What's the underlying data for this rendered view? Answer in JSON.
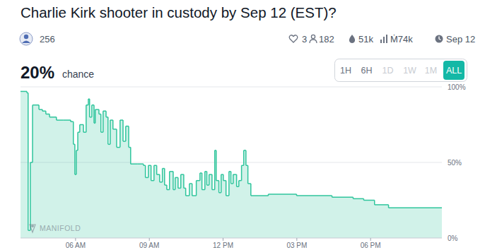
{
  "header": {
    "creator_stat": "256",
    "stats": [
      "3",
      "182",
      "51k",
      "Ṁ74k",
      "Sep 12"
    ],
    "probability": "20%",
    "probability_caption": "chance",
    "time_ranges": [
      "1H",
      "6H",
      "1D",
      "1W",
      "1M",
      "ALL"
    ],
    "selected_range": "ALL",
    "disabled_ranges": [
      "1D",
      "1W",
      "1M"
    ]
  },
  "watermark": "MANIFOLD",
  "chart_data": {
    "type": "area",
    "title": "Charlie Kirk shooter in custody by Sep 12 (EST)?",
    "x": [
      3.76,
      4.02,
      4.07,
      4.16,
      4.25,
      4.51,
      4.65,
      4.79,
      4.94,
      5.22,
      5.51,
      5.8,
      5.91,
      5.97,
      6.03,
      6.09,
      6.17,
      6.32,
      6.43,
      6.52,
      6.57,
      6.66,
      6.75,
      6.8,
      6.95,
      7.03,
      7.12,
      7.24,
      7.32,
      7.41,
      7.52,
      7.67,
      7.81,
      7.93,
      8.04,
      8.16,
      8.24,
      8.53,
      8.76,
      8.84,
      8.96,
      9.07,
      9.19,
      9.3,
      9.42,
      9.53,
      9.62,
      9.71,
      9.82,
      9.97,
      10.05,
      10.17,
      10.28,
      10.4,
      10.48,
      10.63,
      10.74,
      10.91,
      11.06,
      11.14,
      11.26,
      11.34,
      11.43,
      11.55,
      11.66,
      11.72,
      11.83,
      11.92,
      12.01,
      12.12,
      12.24,
      12.32,
      12.41,
      12.55,
      12.64,
      12.75,
      12.84,
      12.93,
      13.01,
      13.13,
      13.84,
      14.99,
      16.43,
      17.29,
      17.72,
      18.16,
      18.73
    ],
    "values": [
      97,
      96,
      5,
      50,
      88,
      85,
      84,
      82,
      80,
      78,
      78,
      77,
      62,
      42,
      58,
      70,
      75,
      70,
      88,
      92,
      80,
      88,
      76,
      85,
      82,
      70,
      84,
      80,
      62,
      78,
      72,
      60,
      78,
      64,
      74,
      60,
      49,
      49,
      48,
      40,
      48,
      38,
      48,
      42,
      37,
      46,
      35,
      32,
      44,
      32,
      40,
      33,
      42,
      33,
      28,
      36,
      28,
      38,
      43,
      32,
      44,
      35,
      42,
      32,
      58,
      38,
      30,
      42,
      38,
      28,
      44,
      36,
      42,
      34,
      38,
      48,
      58,
      48,
      36,
      28,
      29,
      28,
      27,
      26,
      25,
      22,
      20
    ],
    "color": "#2fc59c",
    "line_style": "step",
    "xlim": [
      3.76,
      20.9
    ],
    "xticks": [
      {
        "value": 6,
        "label": "06 AM"
      },
      {
        "value": 9,
        "label": "09 AM"
      },
      {
        "value": 12,
        "label": "12 PM"
      },
      {
        "value": 15,
        "label": "03 PM"
      },
      {
        "value": 18,
        "label": "06 PM"
      }
    ],
    "ylim": [
      0,
      100
    ],
    "yticks": [
      {
        "value": 0,
        "label": "0%"
      },
      {
        "value": 50,
        "label": "50%"
      },
      {
        "value": 100,
        "label": "100%"
      }
    ],
    "grid": true
  }
}
